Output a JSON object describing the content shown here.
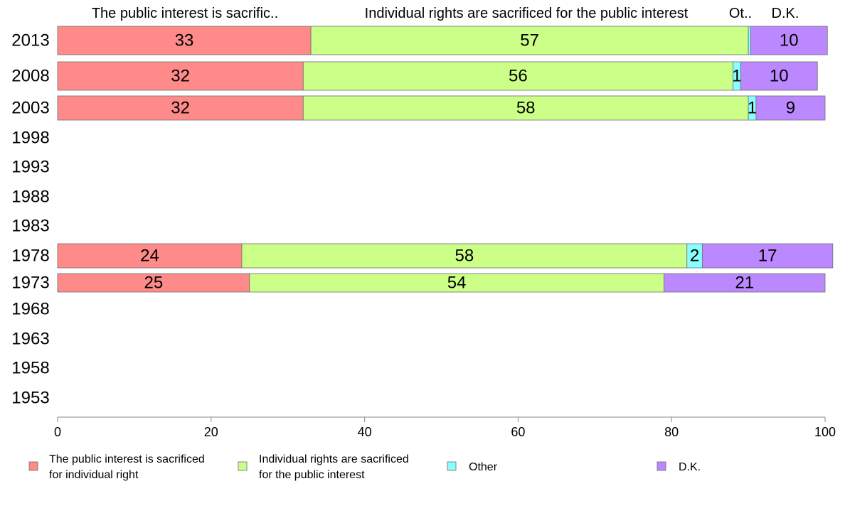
{
  "chart_data": {
    "type": "bar",
    "orientation": "horizontal",
    "stacked": true,
    "top_labels": [
      "The public interest is sacrific..",
      "Individual rights are sacrificed for the public interest",
      "Ot..",
      "D.K."
    ],
    "categories": [
      "2013",
      "2008",
      "2003",
      "1998",
      "1993",
      "1988",
      "1983",
      "1978",
      "1973",
      "1968",
      "1963",
      "1958",
      "1953"
    ],
    "series": [
      {
        "name": "The public interest is sacrificed for individual right",
        "color": "#ff8a8a",
        "values": [
          33,
          32,
          32,
          null,
          null,
          null,
          null,
          24,
          25,
          null,
          null,
          null,
          null
        ]
      },
      {
        "name": "Individual rights are sacrificed for the public interest",
        "color": "#ccff88",
        "values": [
          57,
          56,
          58,
          null,
          null,
          null,
          null,
          58,
          54,
          null,
          null,
          null,
          null
        ]
      },
      {
        "name": "Other",
        "color": "#88ffff",
        "values": [
          0.3,
          1,
          1,
          null,
          null,
          null,
          null,
          2,
          0,
          null,
          null,
          null,
          null
        ]
      },
      {
        "name": "D.K.",
        "color": "#bb88ff",
        "values": [
          10,
          10,
          9,
          null,
          null,
          null,
          null,
          17,
          21,
          null,
          null,
          null,
          null
        ]
      }
    ],
    "data_labels": [
      [
        "33",
        "57",
        "",
        "10"
      ],
      [
        "32",
        "56",
        "1",
        "10"
      ],
      [
        "32",
        "58",
        "1",
        "9"
      ],
      null,
      null,
      null,
      null,
      [
        "24",
        "58",
        "2",
        "17"
      ],
      [
        "25",
        "54",
        "",
        "21"
      ],
      null,
      null,
      null,
      null
    ],
    "legend": {
      "position": "bottom",
      "entries": [
        [
          "The public interest is sacrificed",
          "for individual right"
        ],
        [
          "Individual rights are sacrificed",
          "for the public interest"
        ],
        [
          "Other"
        ],
        [
          "D.K."
        ]
      ]
    },
    "xlim": [
      0,
      100
    ],
    "x_ticks": [
      0,
      20,
      40,
      60,
      80,
      100
    ],
    "grid": false
  }
}
